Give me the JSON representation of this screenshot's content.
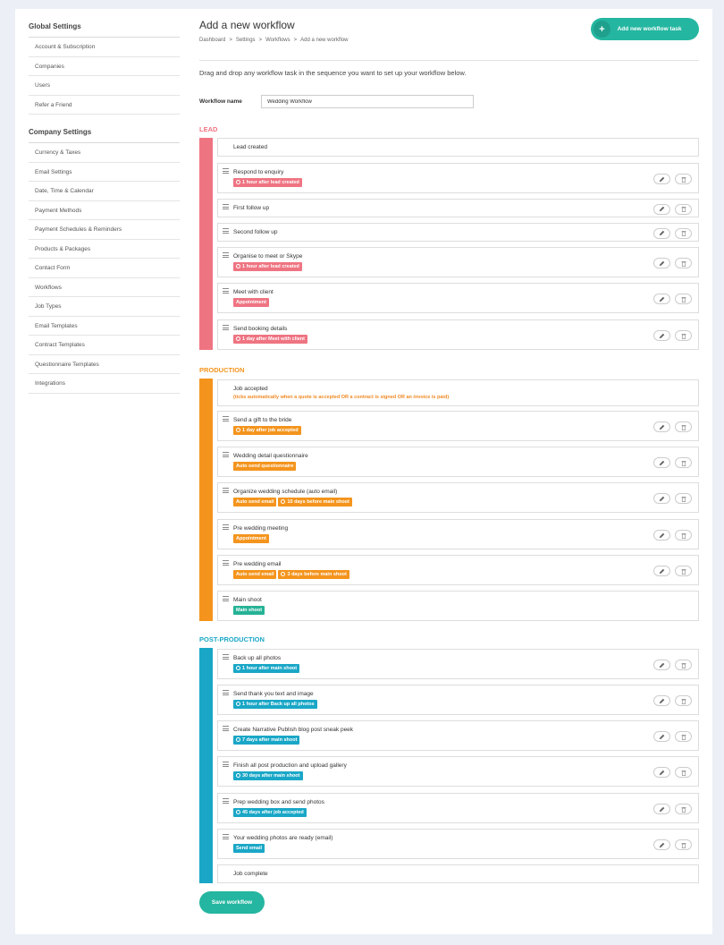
{
  "colors": {
    "lead": "#ef7482",
    "production": "#f4941d",
    "post_production": "#1aa7c7",
    "main_shoot_tag": "#26b296",
    "brand": "#24b6a0"
  },
  "sidebar": {
    "global_heading": "Global Settings",
    "global_items": [
      {
        "label": "Account & Subscription"
      },
      {
        "label": "Companies"
      },
      {
        "label": "Users"
      },
      {
        "label": "Refer a Friend"
      }
    ],
    "company_heading": "Company Settings",
    "company_items": [
      {
        "label": "Currency & Taxes"
      },
      {
        "label": "Email Settings"
      },
      {
        "label": "Date, Time & Calendar"
      },
      {
        "label": "Payment Methods"
      },
      {
        "label": "Payment Schedules & Reminders"
      },
      {
        "label": "Products & Packages"
      },
      {
        "label": "Contact Form"
      },
      {
        "label": "Workflows"
      },
      {
        "label": "Job Types"
      },
      {
        "label": "Email Templates"
      },
      {
        "label": "Contract Templates"
      },
      {
        "label": "Questionnaire Templates"
      },
      {
        "label": "Integrations"
      }
    ]
  },
  "header": {
    "title": "Add a new workflow",
    "breadcrumb": [
      "Dashboard",
      "Settings",
      "Workflows",
      "Add a new workflow"
    ],
    "breadcrumb_sep": ">",
    "add_task_label": "Add new workflow task",
    "add_task_icon": "+"
  },
  "intro": "Drag and drop any workflow task in the sequence you want to set up your workflow below.",
  "form": {
    "name_label": "Workflow name",
    "name_value": "Wedding Workflow"
  },
  "sections": [
    {
      "key": "lead",
      "label": "LEAD",
      "color_key": "lead",
      "tasks": [
        {
          "name": "Lead created",
          "fixed": true,
          "tags": []
        },
        {
          "name": "Respond to enquiry",
          "tags": [
            {
              "text": "1 hour after lead created",
              "clock": true
            }
          ]
        },
        {
          "name": "First follow up",
          "tags": []
        },
        {
          "name": "Second follow up",
          "tags": []
        },
        {
          "name": "Organise to meet or Skype",
          "tags": [
            {
              "text": "1 hour after lead created",
              "clock": true
            }
          ]
        },
        {
          "name": "Meet with client",
          "tags": [
            {
              "text": "Appointment",
              "clock": false
            }
          ]
        },
        {
          "name": "Send booking details",
          "tags": [
            {
              "text": "1 day after Meet with client",
              "clock": true
            }
          ]
        }
      ]
    },
    {
      "key": "production",
      "label": "PRODUCTION",
      "color_key": "production",
      "tasks": [
        {
          "name": "Job accepted",
          "fixed": true,
          "note": "(ticks automatically when a quote is accepted OR a contract is signed OR an invoice is paid)",
          "tags": []
        },
        {
          "name": "Send a gift to the bride",
          "tags": [
            {
              "text": "1 day after job accepted",
              "clock": true
            }
          ]
        },
        {
          "name": "Wedding detail questionnaire",
          "tags": [
            {
              "text": "Auto send questionnaire",
              "clock": false
            }
          ]
        },
        {
          "name": "Organize wedding schedule (auto email)",
          "tags": [
            {
              "text": "Auto send email",
              "clock": false
            },
            {
              "text": "10 days before main shoot",
              "clock": true
            }
          ]
        },
        {
          "name": "Pre wedding meeting",
          "tags": [
            {
              "text": "Appointment",
              "clock": false
            }
          ]
        },
        {
          "name": "Pre wedding email",
          "tags": [
            {
              "text": "Auto send email",
              "clock": false
            },
            {
              "text": "3 days before main shoot",
              "clock": true
            }
          ]
        },
        {
          "name": "Main shoot",
          "no_actions": true,
          "tags": [
            {
              "text": "Main shoot",
              "clock": false,
              "color_key": "main_shoot_tag"
            }
          ]
        }
      ]
    },
    {
      "key": "post_production",
      "label": "POST-PRODUCTION",
      "color_key": "post_production",
      "tasks": [
        {
          "name": "Back up all photos",
          "tags": [
            {
              "text": "1 hour after main shoot",
              "clock": true
            }
          ]
        },
        {
          "name": "Send thank you text and image",
          "tags": [
            {
              "text": "1 hour after Back up all photos",
              "clock": true
            }
          ]
        },
        {
          "name": "Create Narrative Publish blog post sneak peek",
          "tags": [
            {
              "text": "7 days after main shoot",
              "clock": true
            }
          ]
        },
        {
          "name": "Finish all post production and upload gallery",
          "tags": [
            {
              "text": "30 days after main shoot",
              "clock": true
            }
          ]
        },
        {
          "name": "Prep wedding box and send photos",
          "tags": [
            {
              "text": "45 days after job accepted",
              "clock": true
            }
          ]
        },
        {
          "name": "Your wedding photos are ready (email)",
          "tags": [
            {
              "text": "Send email",
              "clock": false
            }
          ]
        },
        {
          "name": "Job complete",
          "fixed": true,
          "tags": []
        }
      ]
    }
  ],
  "icons": {
    "edit": "pencil-icon",
    "delete": "trash-icon",
    "drag": "drag-handle-icon"
  },
  "footer": {
    "save_label": "Save workflow"
  }
}
